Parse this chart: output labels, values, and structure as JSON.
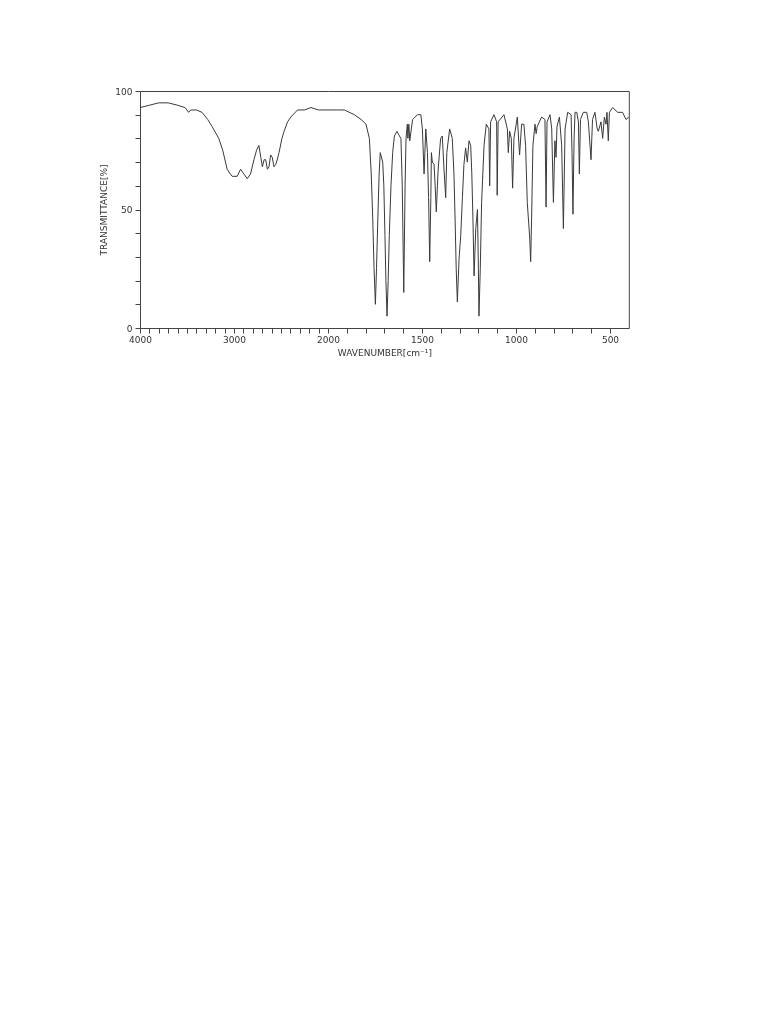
{
  "chart_data": [
    {
      "type": "line",
      "ylabel": "TRANSMITTANCE[%]",
      "color": "#3a3a3a",
      "xlim": [
        4000,
        2000
      ],
      "ylim": [
        0,
        100
      ],
      "xticks": [
        4000,
        {
          "value": 3900,
          "label": null
        },
        {
          "value": 3800,
          "label": null
        },
        {
          "value": 3700,
          "label": null
        },
        {
          "value": 3600,
          "label": null
        },
        {
          "value": 3500,
          "label": null
        },
        {
          "value": 3400,
          "label": null
        },
        {
          "value": 3300,
          "label": null
        },
        {
          "value": 3200,
          "label": null
        },
        {
          "value": 3100,
          "label": null
        },
        3000,
        {
          "value": 2900,
          "label": null
        },
        {
          "value": 2800,
          "label": null
        },
        {
          "value": 2700,
          "label": null
        },
        {
          "value": 2600,
          "label": null
        },
        {
          "value": 2500,
          "label": null
        },
        {
          "value": 2400,
          "label": null
        },
        {
          "value": 2300,
          "label": null
        },
        {
          "value": 2200,
          "label": null
        },
        {
          "value": 2100,
          "label": null
        },
        2000
      ],
      "yticks": [
        0,
        {
          "value": 10,
          "label": null
        },
        {
          "value": 20,
          "label": null
        },
        {
          "value": 30,
          "label": null
        },
        {
          "value": 40,
          "label": null
        },
        50,
        {
          "value": 60,
          "label": null
        },
        {
          "value": 70,
          "label": null
        },
        {
          "value": 80,
          "label": null
        },
        {
          "value": 90,
          "label": null
        },
        100
      ],
      "x": [
        4000,
        3900,
        3800,
        3700,
        3600,
        3520,
        3483,
        3460,
        3400,
        3340,
        3280,
        3233,
        3190,
        3162,
        3120,
        3073,
        3040,
        3020,
        2966,
        2930,
        2895,
        2859,
        2824,
        2788,
        2760,
        2735,
        2715,
        2698,
        2680,
        2663,
        2645,
        2628,
        2610,
        2593,
        2575,
        2556,
        2540,
        2521,
        2490,
        2467,
        2430,
        2396,
        2324,
        2250,
        2182,
        2100,
        2000
      ],
      "values": [
        93,
        94,
        95,
        95,
        94,
        93,
        91,
        92,
        92,
        91,
        88,
        85,
        82,
        80,
        75,
        67,
        65,
        64,
        64,
        67,
        65,
        63,
        65,
        71,
        75,
        77,
        72,
        68,
        71,
        71,
        67,
        68,
        73,
        72,
        68,
        69,
        71,
        74,
        80,
        83,
        87,
        89,
        92,
        92,
        93,
        92,
        92
      ]
    },
    {
      "type": "line",
      "xlabel": "WAVENUMBER[cm⁻¹]",
      "color": "#3a3a3a",
      "xlim": [
        2000,
        400
      ],
      "ylim": [
        0,
        100
      ],
      "tick_labels": "x",
      "xticks": [
        {
          "value": 1900,
          "label": null
        },
        {
          "value": 1800,
          "label": null
        },
        {
          "value": 1700,
          "label": null
        },
        {
          "value": 1600,
          "label": null
        },
        1500,
        {
          "value": 1400,
          "label": null
        },
        {
          "value": 1300,
          "label": null
        },
        {
          "value": 1200,
          "label": null
        },
        {
          "value": 1100,
          "label": null
        },
        1000,
        {
          "value": 900,
          "label": null
        },
        {
          "value": 800,
          "label": null
        },
        {
          "value": 700,
          "label": null
        },
        {
          "value": 600,
          "label": null
        },
        500
      ],
      "x": [
        2000,
        1950,
        1913,
        1860,
        1824,
        1798,
        1780,
        1770,
        1762,
        1755,
        1748,
        1742,
        1735,
        1728,
        1722,
        1709,
        1703,
        1697,
        1692,
        1686,
        1680,
        1674,
        1665,
        1656,
        1647,
        1633,
        1620,
        1612,
        1605,
        1597,
        1590,
        1585,
        1578,
        1575,
        1570,
        1565,
        1550,
        1524,
        1506,
        1498,
        1489,
        1480,
        1471,
        1465,
        1459,
        1453,
        1450,
        1445,
        1436,
        1430,
        1424,
        1418,
        1414,
        1401,
        1392,
        1383,
        1374,
        1368,
        1353,
        1339,
        1330,
        1324,
        1318,
        1312,
        1303,
        1294,
        1285,
        1277,
        1268,
        1259,
        1250,
        1241,
        1235,
        1229,
        1223,
        1214,
        1205,
        1200,
        1197,
        1190,
        1183,
        1170,
        1158,
        1144,
        1140,
        1135,
        1117,
        1103,
        1100,
        1095,
        1064,
        1046,
        1041,
        1034,
        1025,
        1018,
        1011,
        993,
        981,
        970,
        958,
        949,
        940,
        927,
        922,
        917,
        910,
        899,
        893,
        887,
        864,
        846,
        840,
        835,
        819,
        810,
        801,
        793,
        787,
        782,
        769,
        757,
        748,
        739,
        725,
        707,
        702,
        697,
        691,
        686,
        677,
        668,
        663,
        657,
        642,
        624,
        615,
        601,
        593,
        580,
        568,
        562,
        548,
        539,
        530,
        521,
        516,
        509,
        503,
        486,
        459,
        433,
        415,
        400
      ],
      "values": [
        92,
        92,
        92,
        90,
        88,
        86,
        80,
        65,
        46,
        25,
        10,
        25,
        46,
        65,
        74,
        70,
        60,
        39,
        20,
        5,
        20,
        39,
        60,
        74,
        81,
        83,
        81,
        80,
        60,
        15,
        60,
        80,
        86,
        80,
        86,
        79,
        88,
        90,
        90,
        84,
        65,
        84,
        74,
        55,
        28,
        55,
        74,
        70,
        69,
        60,
        49,
        60,
        67,
        80,
        81,
        67,
        55,
        74,
        84,
        80,
        65,
        46,
        25,
        11,
        29,
        39,
        55,
        69,
        76,
        70,
        79,
        77,
        65,
        46,
        22,
        42,
        50,
        25,
        5,
        25,
        53,
        77,
        86,
        84,
        60,
        87,
        90,
        87,
        56,
        87,
        90,
        84,
        74,
        83,
        80,
        59,
        80,
        89,
        73,
        86,
        86,
        77,
        53,
        38,
        28,
        46,
        77,
        86,
        82,
        85,
        89,
        88,
        51,
        87,
        90,
        84,
        53,
        79,
        72,
        85,
        89,
        77,
        42,
        84,
        91,
        90,
        74,
        48,
        80,
        91,
        91,
        87,
        65,
        88,
        91,
        91,
        87,
        71,
        88,
        91,
        84,
        83,
        87,
        80,
        89,
        86,
        91,
        79,
        91,
        93,
        91,
        91,
        88,
        89
      ]
    }
  ]
}
